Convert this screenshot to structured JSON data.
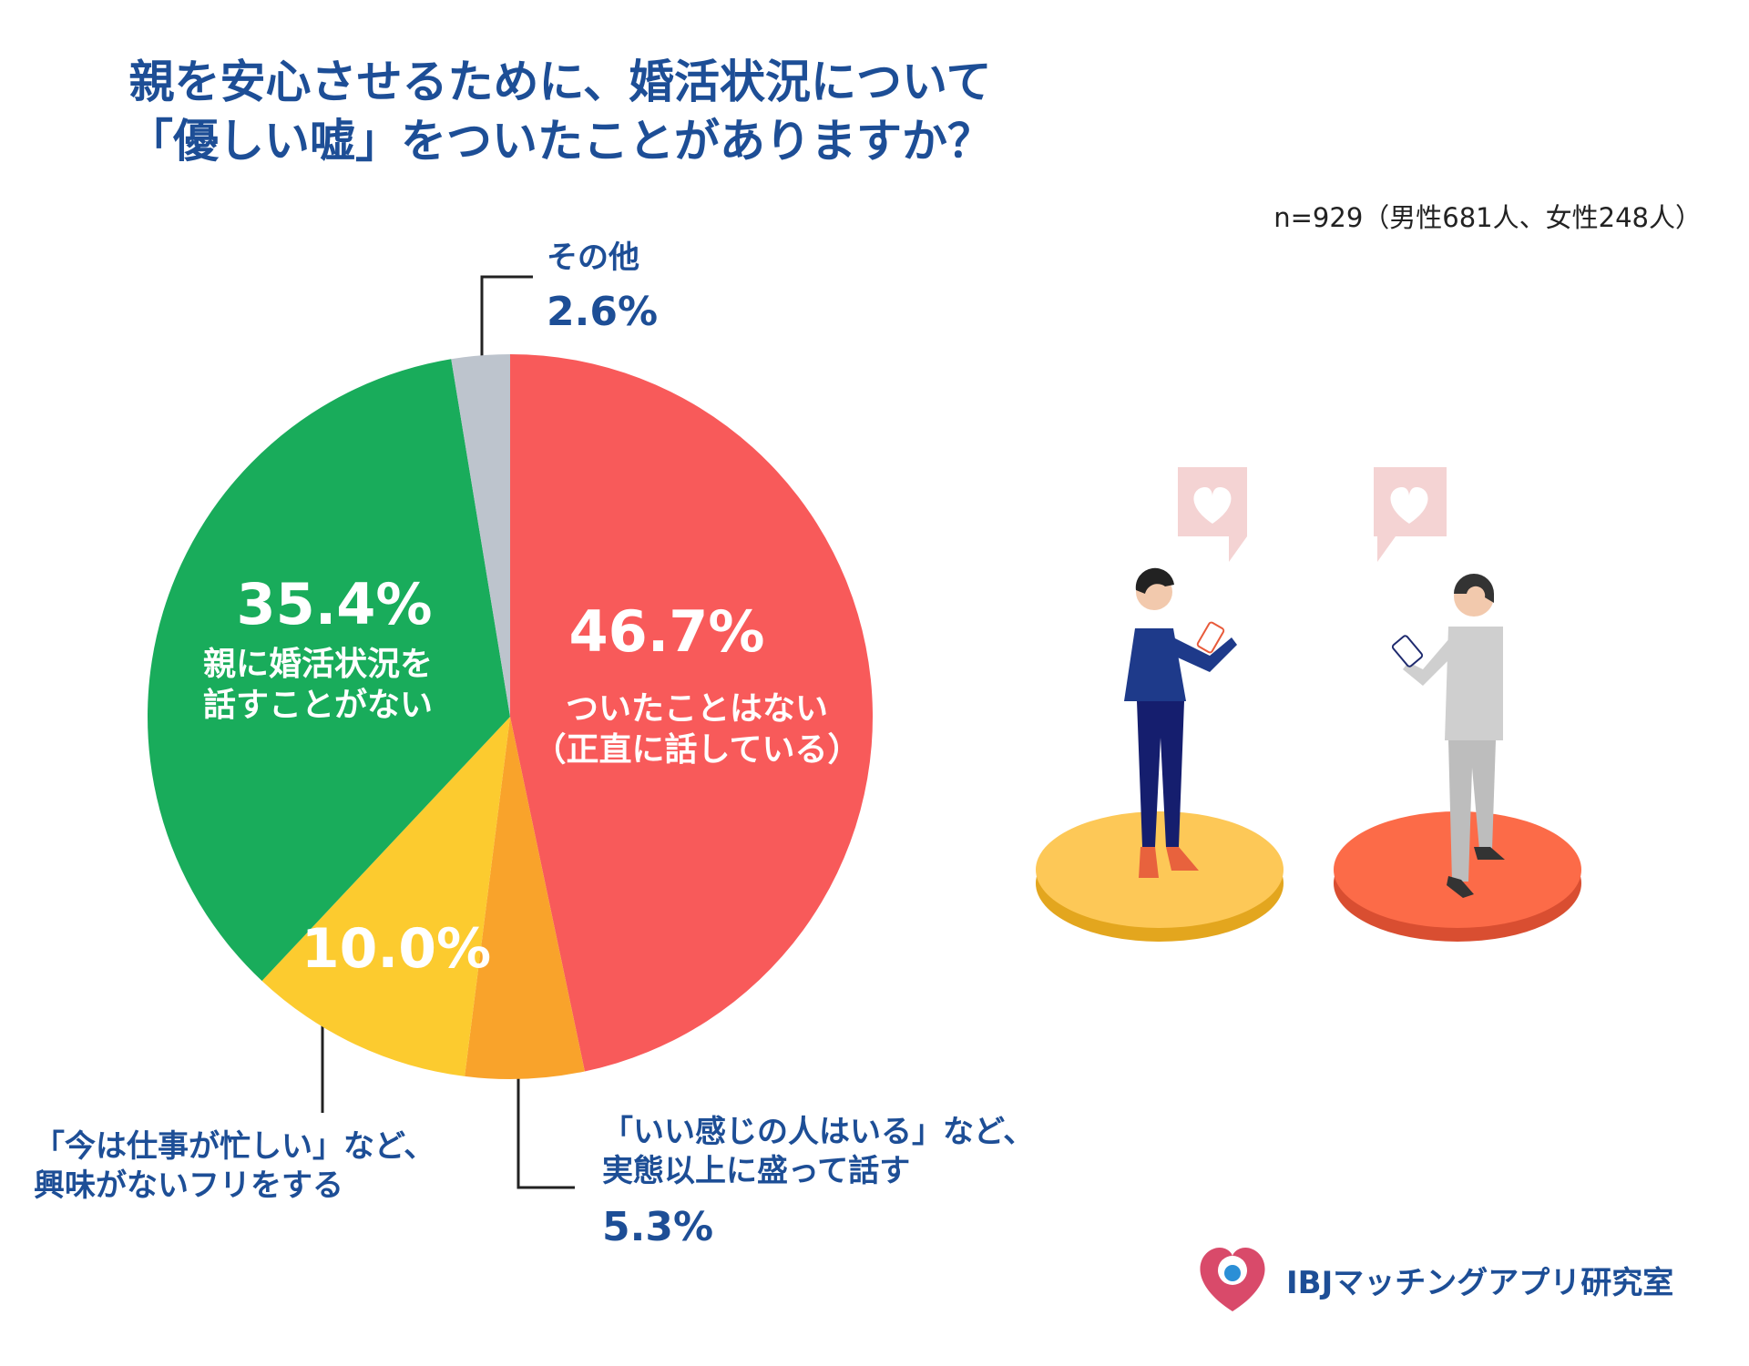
{
  "title": "親を安心させるために、婚活状況について\n「優しい嘘」をついたことがありますか？",
  "subtitle": "n=929（男性681人、女性248人）",
  "brand": "IBJマッチングアプリ研究室",
  "chart_data": {
    "type": "pie",
    "categories": [
      "ついたことはない\n（正直に話している）",
      "「いい感じの人はいる」など、\n実態以上に盛って話す",
      "「今は仕事が忙しい」など、\n興味がないフリをする",
      "親に婚活状況を\n話すことがない",
      "その他"
    ],
    "values": [
      46.7,
      5.3,
      10.0,
      35.4,
      2.6
    ],
    "value_labels": [
      "46.7%",
      "5.3%",
      "10.0%",
      "35.4%",
      "2.6%"
    ],
    "colors": [
      "#f85a5a",
      "#f9a32b",
      "#fccb2f",
      "#19ac5b",
      "#bdc4cd"
    ]
  }
}
